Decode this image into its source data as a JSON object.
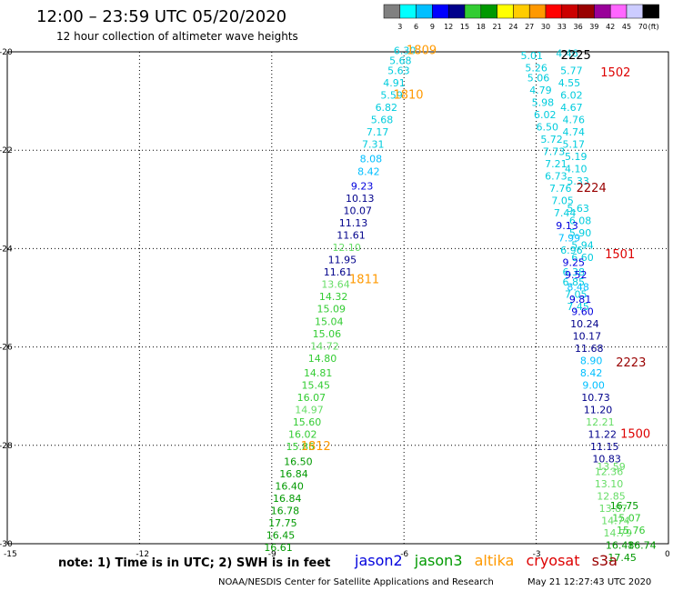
{
  "header": {
    "title": "12:00 – 23:59 UTC 05/20/2020",
    "subtitle": "12 hour collection of altimeter wave heights",
    "unit_label": "(ft)"
  },
  "colorbar": {
    "labels": [
      "3",
      "6",
      "9",
      "12",
      "15",
      "18",
      "21",
      "24",
      "27",
      "30",
      "33",
      "36",
      "39",
      "42",
      "45",
      "70"
    ],
    "colors": [
      "#808080",
      "#00ffff",
      "#00bfff",
      "#0000ff",
      "#00008b",
      "#33cc33",
      "#009900",
      "#ffff00",
      "#ffcc00",
      "#ff9900",
      "#ff0000",
      "#cc0000",
      "#990000",
      "#990099",
      "#ff66ff",
      "#ccccff",
      "#000000"
    ]
  },
  "footer": {
    "note": "note: 1) Time is in UTC; 2) SWH is in feet",
    "credit": "NOAA/NESDIS Center for Satellite Applications and Research",
    "timestamp": "May 21 12:27:43 UTC 2020",
    "satellites": [
      {
        "name": "jason2",
        "color": "#0000dd"
      },
      {
        "name": "jason3",
        "color": "#009900"
      },
      {
        "name": "altika",
        "color": "#ff9900"
      },
      {
        "name": "cryosat",
        "color": "#dd0000"
      },
      {
        "name": "s3a",
        "color": "#990000"
      }
    ]
  },
  "chart_data": {
    "type": "scatter",
    "xlim": [
      -15,
      0
    ],
    "ylim": [
      -30,
      -20
    ],
    "xticks": [
      -15,
      -12,
      -9,
      -6,
      -3,
      0
    ],
    "yticks": [
      -20,
      -22,
      -24,
      -26,
      -28,
      -30
    ],
    "grid": true,
    "passes": [
      {
        "label": "1809",
        "lon": -5.6,
        "lat": -20.05,
        "color": "#ff9900"
      },
      {
        "label": "1810",
        "lon": -5.9,
        "lat": -20.95,
        "color": "#ff9900"
      },
      {
        "label": "1811",
        "lon": -6.9,
        "lat": -24.7,
        "color": "#ff9900"
      },
      {
        "label": "1812",
        "lon": -8.0,
        "lat": -28.1,
        "color": "#ff9900"
      },
      {
        "label": "2225",
        "lon": -2.1,
        "lat": -20.15,
        "color": "#000000"
      },
      {
        "label": "1502",
        "lon": -1.2,
        "lat": -20.5,
        "color": "#dd0000"
      },
      {
        "label": "2224",
        "lon": -1.75,
        "lat": -22.85,
        "color": "#990000"
      },
      {
        "label": "1501",
        "lon": -1.1,
        "lat": -24.2,
        "color": "#dd0000"
      },
      {
        "label": "2223",
        "lon": -0.85,
        "lat": -26.4,
        "color": "#990000"
      },
      {
        "label": "1500",
        "lon": -0.75,
        "lat": -27.85,
        "color": "#dd0000"
      }
    ],
    "tracks": [
      {
        "name": "altika track 1809-1812",
        "points": [
          {
            "lon": -5.98,
            "lat": -20.05,
            "swh": "6.30",
            "color": "#00ccdd"
          },
          {
            "lon": -6.08,
            "lat": -20.25,
            "swh": "5.68",
            "color": "#00ccdd"
          },
          {
            "lon": -6.12,
            "lat": -20.45,
            "swh": "5.63",
            "color": "#00ccdd"
          },
          {
            "lon": -6.22,
            "lat": -20.7,
            "swh": "4.91",
            "color": "#00ccdd"
          },
          {
            "lon": -6.28,
            "lat": -20.95,
            "swh": "5.59",
            "color": "#00ccdd"
          },
          {
            "lon": -6.4,
            "lat": -21.2,
            "swh": "6.82",
            "color": "#00ccdd"
          },
          {
            "lon": -6.5,
            "lat": -21.45,
            "swh": "5.68",
            "color": "#00ccdd"
          },
          {
            "lon": -6.6,
            "lat": -21.7,
            "swh": "7.17",
            "color": "#00ccdd"
          },
          {
            "lon": -6.7,
            "lat": -21.95,
            "swh": "7.31",
            "color": "#00ccdd"
          },
          {
            "lon": -6.75,
            "lat": -22.25,
            "swh": "8.08",
            "color": "#00bfff"
          },
          {
            "lon": -6.8,
            "lat": -22.5,
            "swh": "8.42",
            "color": "#00bfff"
          },
          {
            "lon": -6.95,
            "lat": -22.8,
            "swh": "9.23",
            "color": "#0000dd"
          },
          {
            "lon": -7.0,
            "lat": -23.05,
            "swh": "10.13",
            "color": "#00008b"
          },
          {
            "lon": -7.05,
            "lat": -23.3,
            "swh": "10.07",
            "color": "#00008b"
          },
          {
            "lon": -7.15,
            "lat": -23.55,
            "swh": "11.13",
            "color": "#00008b"
          },
          {
            "lon": -7.2,
            "lat": -23.8,
            "swh": "11.61",
            "color": "#00008b"
          },
          {
            "lon": -7.3,
            "lat": -24.05,
            "swh": "12.10",
            "color": "#66dd66"
          },
          {
            "lon": -7.4,
            "lat": -24.3,
            "swh": "11.95",
            "color": "#00008b"
          },
          {
            "lon": -7.5,
            "lat": -24.55,
            "swh": "11.61",
            "color": "#00008b"
          },
          {
            "lon": -7.55,
            "lat": -24.8,
            "swh": "13.64",
            "color": "#66dd66"
          },
          {
            "lon": -7.6,
            "lat": -25.05,
            "swh": "14.32",
            "color": "#33cc33"
          },
          {
            "lon": -7.65,
            "lat": -25.3,
            "swh": "15.09",
            "color": "#33cc33"
          },
          {
            "lon": -7.7,
            "lat": -25.55,
            "swh": "15.04",
            "color": "#33cc33"
          },
          {
            "lon": -7.75,
            "lat": -25.8,
            "swh": "15.06",
            "color": "#33cc33"
          },
          {
            "lon": -7.8,
            "lat": -26.05,
            "swh": "14.72",
            "color": "#66dd66"
          },
          {
            "lon": -7.85,
            "lat": -26.3,
            "swh": "14.80",
            "color": "#33cc33"
          },
          {
            "lon": -7.95,
            "lat": -26.6,
            "swh": "14.81",
            "color": "#33cc33"
          },
          {
            "lon": -8.0,
            "lat": -26.85,
            "swh": "15.45",
            "color": "#33cc33"
          },
          {
            "lon": -8.1,
            "lat": -27.1,
            "swh": "16.07",
            "color": "#33cc33"
          },
          {
            "lon": -8.15,
            "lat": -27.35,
            "swh": "14.97",
            "color": "#66dd66"
          },
          {
            "lon": -8.2,
            "lat": -27.6,
            "swh": "15.60",
            "color": "#33cc33"
          },
          {
            "lon": -8.3,
            "lat": -27.85,
            "swh": "16.02",
            "color": "#33cc33"
          },
          {
            "lon": -8.35,
            "lat": -28.1,
            "swh": "15.85",
            "color": "#33cc33"
          },
          {
            "lon": -8.4,
            "lat": -28.4,
            "swh": "16.50",
            "color": "#009900"
          },
          {
            "lon": -8.5,
            "lat": -28.65,
            "swh": "16.84",
            "color": "#009900"
          },
          {
            "lon": -8.6,
            "lat": -28.9,
            "swh": "16.40",
            "color": "#009900"
          },
          {
            "lon": -8.65,
            "lat": -29.15,
            "swh": "16.84",
            "color": "#009900"
          },
          {
            "lon": -8.7,
            "lat": -29.4,
            "swh": "16.78",
            "color": "#009900"
          },
          {
            "lon": -8.75,
            "lat": -29.65,
            "swh": "17.75",
            "color": "#009900"
          },
          {
            "lon": -8.8,
            "lat": -29.9,
            "swh": "16.45",
            "color": "#009900"
          },
          {
            "lon": -8.85,
            "lat": -30.15,
            "swh": "16.61",
            "color": "#009900"
          }
        ]
      },
      {
        "name": "cryosat track 1500-1502",
        "points": [
          {
            "lon": -2.3,
            "lat": -20.1,
            "swh": "4.46",
            "color": "#00ccdd"
          },
          {
            "lon": -2.2,
            "lat": -20.45,
            "swh": "5.77",
            "color": "#00ccdd"
          },
          {
            "lon": -2.25,
            "lat": -20.7,
            "swh": "4.55",
            "color": "#00ccdd"
          },
          {
            "lon": -2.2,
            "lat": -20.95,
            "swh": "6.02",
            "color": "#00ccdd"
          },
          {
            "lon": -2.2,
            "lat": -21.2,
            "swh": "4.67",
            "color": "#00ccdd"
          },
          {
            "lon": -2.15,
            "lat": -21.45,
            "swh": "4.76",
            "color": "#00ccdd"
          },
          {
            "lon": -2.15,
            "lat": -21.7,
            "swh": "4.74",
            "color": "#00ccdd"
          },
          {
            "lon": -2.15,
            "lat": -21.95,
            "swh": "5.17",
            "color": "#00ccdd"
          },
          {
            "lon": -2.1,
            "lat": -22.2,
            "swh": "5.19",
            "color": "#00ccdd"
          },
          {
            "lon": -2.1,
            "lat": -22.45,
            "swh": "4.10",
            "color": "#00ccdd"
          },
          {
            "lon": -2.05,
            "lat": -22.7,
            "swh": "5.33",
            "color": "#00ccdd"
          },
          {
            "lon": -2.05,
            "lat": -23.25,
            "swh": "5.63",
            "color": "#00ccdd"
          },
          {
            "lon": -2.0,
            "lat": -23.5,
            "swh": "6.08",
            "color": "#00ccdd"
          },
          {
            "lon": -2.0,
            "lat": -23.75,
            "swh": "5.90",
            "color": "#00ccdd"
          },
          {
            "lon": -1.95,
            "lat": -24.0,
            "swh": "5.94",
            "color": "#00ccdd"
          },
          {
            "lon": -1.95,
            "lat": -24.25,
            "swh": "6.60",
            "color": "#00ccdd"
          },
          {
            "lon": -2.15,
            "lat": -24.55,
            "swh": "6.38",
            "color": "#00ccdd"
          },
          {
            "lon": -2.15,
            "lat": -24.75,
            "swh": "6.85",
            "color": "#00ccdd"
          },
          {
            "lon": -2.1,
            "lat": -25.0,
            "swh": "7.05",
            "color": "#00ccdd"
          },
          {
            "lon": -2.05,
            "lat": -25.25,
            "swh": "7.45",
            "color": "#00ccdd"
          }
        ]
      },
      {
        "name": "s3a track 2223-2225",
        "points": [
          {
            "lon": -3.1,
            "lat": -20.15,
            "swh": "5.01",
            "color": "#00ccdd"
          },
          {
            "lon": -3.0,
            "lat": -20.4,
            "swh": "5.26",
            "color": "#00ccdd"
          },
          {
            "lon": -2.95,
            "lat": -20.6,
            "swh": "5.06",
            "color": "#00ccdd"
          },
          {
            "lon": -2.9,
            "lat": -20.85,
            "swh": "4.79",
            "color": "#00ccdd"
          },
          {
            "lon": -2.85,
            "lat": -21.1,
            "swh": "5.98",
            "color": "#00ccdd"
          },
          {
            "lon": -2.8,
            "lat": -21.35,
            "swh": "6.02",
            "color": "#00ccdd"
          },
          {
            "lon": -2.75,
            "lat": -21.6,
            "swh": "6.50",
            "color": "#00ccdd"
          },
          {
            "lon": -2.65,
            "lat": -21.85,
            "swh": "5.72",
            "color": "#00ccdd"
          },
          {
            "lon": -2.6,
            "lat": -22.1,
            "swh": "7.73",
            "color": "#00ccdd"
          },
          {
            "lon": -2.55,
            "lat": -22.35,
            "swh": "7.21",
            "color": "#00ccdd"
          },
          {
            "lon": -2.55,
            "lat": -22.6,
            "swh": "6.73",
            "color": "#00ccdd"
          },
          {
            "lon": -2.45,
            "lat": -22.85,
            "swh": "7.76",
            "color": "#00ccdd"
          },
          {
            "lon": -2.4,
            "lat": -23.1,
            "swh": "7.05",
            "color": "#00ccdd"
          },
          {
            "lon": -2.35,
            "lat": -23.35,
            "swh": "7.44",
            "color": "#00ccdd"
          },
          {
            "lon": -2.3,
            "lat": -23.6,
            "swh": "9.13",
            "color": "#0000dd"
          },
          {
            "lon": -2.25,
            "lat": -23.85,
            "swh": "7.99",
            "color": "#00bfff"
          },
          {
            "lon": -2.2,
            "lat": -24.1,
            "swh": "6.96",
            "color": "#00ccdd"
          },
          {
            "lon": -2.15,
            "lat": -24.35,
            "swh": "9.25",
            "color": "#0000dd"
          },
          {
            "lon": -2.1,
            "lat": -24.6,
            "swh": "9.52",
            "color": "#0000dd"
          },
          {
            "lon": -2.05,
            "lat": -24.85,
            "swh": "8.48",
            "color": "#00bfff"
          },
          {
            "lon": -2.0,
            "lat": -25.1,
            "swh": "9.81",
            "color": "#0000dd"
          },
          {
            "lon": -1.95,
            "lat": -25.35,
            "swh": "9.60",
            "color": "#0000dd"
          },
          {
            "lon": -1.9,
            "lat": -25.6,
            "swh": "10.24",
            "color": "#00008b"
          },
          {
            "lon": -1.85,
            "lat": -25.85,
            "swh": "10.17",
            "color": "#00008b"
          },
          {
            "lon": -1.8,
            "lat": -26.1,
            "swh": "11.68",
            "color": "#00008b"
          },
          {
            "lon": -1.75,
            "lat": -26.35,
            "swh": "8.90",
            "color": "#00bfff"
          },
          {
            "lon": -1.75,
            "lat": -26.6,
            "swh": "8.42",
            "color": "#00bfff"
          },
          {
            "lon": -1.7,
            "lat": -26.85,
            "swh": "9.00",
            "color": "#00bfff"
          },
          {
            "lon": -1.65,
            "lat": -27.1,
            "swh": "10.73",
            "color": "#00008b"
          },
          {
            "lon": -1.6,
            "lat": -27.35,
            "swh": "11.20",
            "color": "#00008b"
          },
          {
            "lon": -1.55,
            "lat": -27.6,
            "swh": "12.21",
            "color": "#66dd66"
          },
          {
            "lon": -1.5,
            "lat": -27.85,
            "swh": "11.22",
            "color": "#00008b"
          },
          {
            "lon": -1.45,
            "lat": -28.1,
            "swh": "11.15",
            "color": "#00008b"
          },
          {
            "lon": -1.4,
            "lat": -28.35,
            "swh": "10.83",
            "color": "#00008b"
          },
          {
            "lon": -1.35,
            "lat": -28.6,
            "swh": "12.36",
            "color": "#66dd66"
          },
          {
            "lon": -1.35,
            "lat": -28.85,
            "swh": "13.10",
            "color": "#66dd66"
          },
          {
            "lon": -1.3,
            "lat": -29.1,
            "swh": "12.85",
            "color": "#66dd66"
          },
          {
            "lon": -1.25,
            "lat": -29.35,
            "swh": "13.87",
            "color": "#66dd66"
          },
          {
            "lon": -1.2,
            "lat": -29.6,
            "swh": "14.74",
            "color": "#66dd66"
          },
          {
            "lon": -1.15,
            "lat": -29.85,
            "swh": "14.79",
            "color": "#66dd66"
          },
          {
            "lon": -1.1,
            "lat": -30.1,
            "swh": "16.48",
            "color": "#009900"
          },
          {
            "lon": -1.05,
            "lat": -30.35,
            "swh": "17.45",
            "color": "#009900"
          }
        ]
      },
      {
        "name": "jason3 track",
        "points": [
          {
            "lon": -1.3,
            "lat": -28.5,
            "swh": "13.59",
            "color": "#66dd66"
          },
          {
            "lon": -1.0,
            "lat": -29.3,
            "swh": "16.75",
            "color": "#009900"
          },
          {
            "lon": -0.95,
            "lat": -29.55,
            "swh": "15.07",
            "color": "#33cc33"
          },
          {
            "lon": -0.85,
            "lat": -29.8,
            "swh": "15.76",
            "color": "#33cc33"
          },
          {
            "lon": -0.6,
            "lat": -30.1,
            "swh": "16.74",
            "color": "#009900"
          }
        ]
      }
    ]
  }
}
